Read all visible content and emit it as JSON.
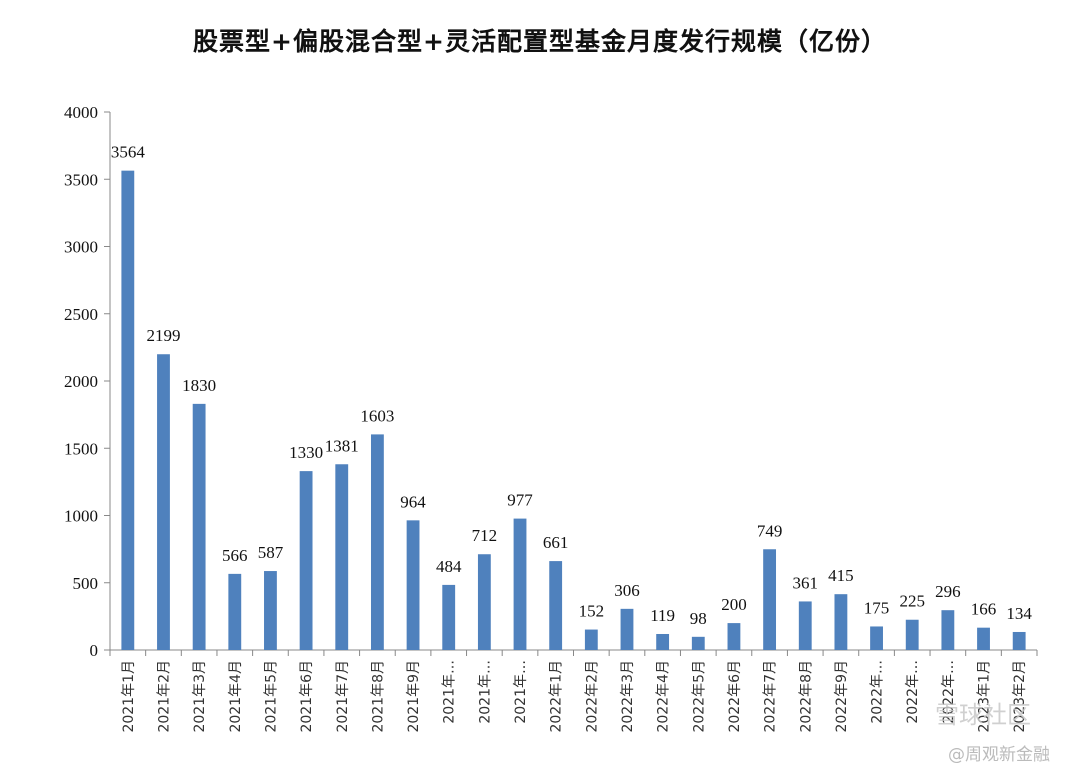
{
  "chart_data": {
    "type": "bar",
    "title": "股票型+偏股混合型+灵活配置型基金月度发行规模（亿份）",
    "xlabel": "",
    "ylabel": "",
    "ylim": [
      0,
      4000
    ],
    "yticks": [
      0,
      500,
      1000,
      1500,
      2000,
      2500,
      3000,
      3500,
      4000
    ],
    "categories": [
      "2021年1月",
      "2021年2月",
      "2021年3月",
      "2021年4月",
      "2021年5月",
      "2021年6月",
      "2021年7月",
      "2021年8月",
      "2021年9月",
      "2021年…",
      "2021年…",
      "2021年…",
      "2022年1月",
      "2022年2月",
      "2022年3月",
      "2022年4月",
      "2022年5月",
      "2022年6月",
      "2022年7月",
      "2022年8月",
      "2022年9月",
      "2022年…",
      "2022年…",
      "2022年…",
      "2023年1月",
      "2023年2月"
    ],
    "values": [
      3564,
      2199,
      1830,
      566,
      587,
      1330,
      1381,
      1603,
      964,
      484,
      712,
      977,
      661,
      152,
      306,
      119,
      98,
      200,
      749,
      361,
      415,
      175,
      225,
      296,
      166,
      134
    ],
    "bar_color": "#4f81bd"
  },
  "watermarks": {
    "primary": "雪球社区",
    "secondary": "@周观新金融"
  }
}
